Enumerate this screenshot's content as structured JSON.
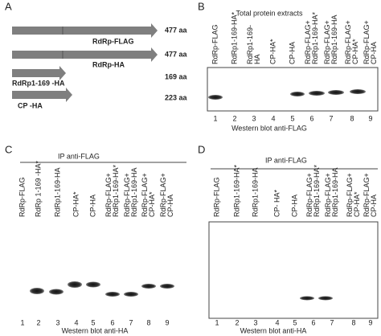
{
  "panel_a": {
    "label": "A",
    "constructs": [
      {
        "name": "RdRp-FLAG",
        "length": "477 aa"
      },
      {
        "name": "RdRp-HA",
        "length": "477 aa"
      },
      {
        "name": "RdRp1-169 -HA",
        "length": "169 aa"
      },
      {
        "name": "CP -HA",
        "length": "223 aa"
      }
    ]
  },
  "panel_b": {
    "label": "B",
    "title": "Total protein extracts",
    "lanes": [
      [
        "RdRp-FLAG"
      ],
      [
        "RdRp1-169-HA*"
      ],
      [
        "RdRp1-169-",
        "HA"
      ],
      [
        "CP-HA*"
      ],
      [
        "CP-HA"
      ],
      [
        "RdRp-FLAG+",
        "RdRp1-169-HA*"
      ],
      [
        "RdRp-FLAG+",
        "RdRp1-169-HA"
      ],
      [
        "RdRp-FLAG+",
        "CP-HA*"
      ],
      [
        "RdRp-FLAG+",
        "CP-HA"
      ]
    ],
    "lane_numbers": [
      "1",
      "2",
      "3",
      "4",
      "5",
      "6",
      "7",
      "8",
      "9"
    ],
    "footer": "Western blot  anti-FLAG"
  },
  "panel_c": {
    "label": "C",
    "title": "IP  anti-FLAG",
    "lanes": [
      [
        "RdRp-FLAG"
      ],
      [
        "RdRp 1-169 -HA*"
      ],
      [
        "RdRp1-169-HA"
      ],
      [
        "CP-HA*"
      ],
      [
        "CP-HA"
      ],
      [
        "RdRp-FLAG+",
        "RdRp1-169-HA*"
      ],
      [
        "RdRp-FLAG+",
        "RdRp1-169-HA"
      ],
      [
        "RdRp-FLAG+",
        "CP-HA*"
      ],
      [
        "RdRp-FLAG+",
        "CP-HA"
      ]
    ],
    "lane_numbers": [
      "1",
      "2",
      "3",
      "4",
      "5",
      "6",
      "7",
      "8",
      "9"
    ],
    "footer": "Western blot anti-HA"
  },
  "panel_d": {
    "label": "D",
    "title": "IP  anti-FLAG",
    "lanes": [
      [
        "RdRp-FLAG"
      ],
      [
        "RdRp1-169-HA*"
      ],
      [
        "RdRp1-169-HA"
      ],
      [
        "CP- HA*"
      ],
      [
        "CP-HA"
      ],
      [
        "RdRp-FLAG+",
        "RdRp1-169-HA*"
      ],
      [
        "RdRp-FLAG+",
        "RdRp1-169-HA"
      ],
      [
        "RdRp-FLAG+",
        "CP-HA*"
      ],
      [
        "RdRp-FLAG+",
        "CP-HA"
      ]
    ],
    "lane_numbers": [
      "1",
      "2",
      "3",
      "4",
      "5",
      "6",
      "7",
      "8",
      "9"
    ],
    "footer": "Western blot anti-HA"
  }
}
